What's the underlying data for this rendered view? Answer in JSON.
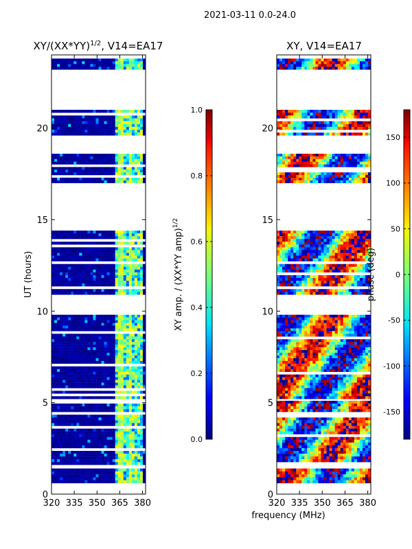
{
  "figure_title": "2021-03-11 0.0-24.0",
  "chart_data": [
    {
      "type": "heatmap",
      "title": "XY/(XX*YY)",
      "title_power": "1/2",
      "title_suffix": ", V14=EA17",
      "xlabel": "",
      "ylabel": "UT (hours)",
      "xlim": [
        320,
        382
      ],
      "ylim": [
        0,
        24
      ],
      "xticks": [
        320,
        335,
        350,
        365,
        380
      ],
      "yticks": [
        0,
        5,
        10,
        15,
        20
      ],
      "colorbar": {
        "label": "XY amp. / (XX*YY amp)",
        "label_power": "1/2",
        "range": [
          0.0,
          1.0
        ],
        "ticks": [
          "0.0",
          "0.2",
          "0.4",
          "0.6",
          "0.8",
          "1.0"
        ],
        "colormap": "jet"
      },
      "time_blocks_hours": [
        [
          0.6,
          1.4
        ],
        [
          1.6,
          5.1
        ],
        [
          5.2,
          9.8
        ],
        [
          10.9,
          14.4
        ],
        [
          17.0,
          18.6
        ],
        [
          19.6,
          21.0
        ],
        [
          23.2,
          23.8
        ]
      ],
      "features": "mostly low amplitude (~0) below 362 MHz; bright vertical bands (0.3-0.6) near 363-380 MHz"
    },
    {
      "type": "heatmap",
      "title": "XY, V14=EA17",
      "xlabel": "frequency (MHz)",
      "ylabel": "",
      "xlim": [
        320,
        382
      ],
      "ylim": [
        0,
        24
      ],
      "xticks": [
        320,
        335,
        350,
        365,
        380
      ],
      "yticks": [
        0,
        5,
        10,
        15,
        20
      ],
      "colorbar": {
        "label": "phase (deg)",
        "range": [
          -180,
          180
        ],
        "ticks": [
          "-150",
          "-100",
          "-50",
          "0",
          "50",
          "100",
          "150"
        ],
        "colormap": "jet"
      },
      "time_blocks_hours": [
        [
          0.6,
          1.4
        ],
        [
          1.6,
          5.1
        ],
        [
          5.2,
          9.8
        ],
        [
          10.9,
          14.4
        ],
        [
          17.0,
          18.6
        ],
        [
          19.6,
          21.0
        ],
        [
          23.2,
          23.8
        ]
      ],
      "features": "phase wraps across full range with broad red/yellow/blue structures"
    }
  ]
}
